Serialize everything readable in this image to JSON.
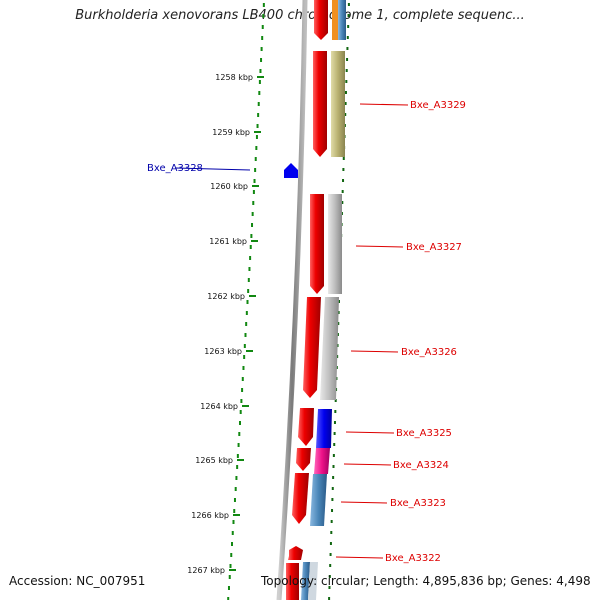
{
  "title": "Burkholderia xenovorans LB400 chromosome 1, complete sequenc...",
  "footer": {
    "accession": "Accession: NC_007951",
    "stats": "Topology: circular; Length: 4,895,836 bp; Genes: 4,498"
  },
  "ticks": [
    "1258 kbp",
    "1259 kbp",
    "1260 kbp",
    "1261 kbp",
    "1262 kbp",
    "1263 kbp",
    "1264 kbp",
    "1265 kbp",
    "1266 kbp",
    "1267 kbp"
  ],
  "gene_labels": [
    {
      "text": "Bxe_A3329",
      "color": "#dd0000"
    },
    {
      "text": "Bxe_A3328",
      "color": "#0000aa"
    },
    {
      "text": "Bxe_A3327",
      "color": "#dd0000"
    },
    {
      "text": "Bxe_A3326",
      "color": "#dd0000"
    },
    {
      "text": "Bxe_A3325",
      "color": "#dd0000"
    },
    {
      "text": "Bxe_A3324",
      "color": "#dd0000"
    },
    {
      "text": "Bxe_A3323",
      "color": "#dd0000"
    },
    {
      "text": "Bxe_A3322",
      "color": "#dd0000"
    }
  ],
  "colors": {
    "cds": "#ee0000",
    "backbone": "#888888",
    "tick_dots": "#118811",
    "olive": "#b8b070",
    "gray_feature": "#bdbdbd",
    "blue_feature": "#0000ee",
    "pink_feature": "#ee1188",
    "steel_feature": "#4a86b8",
    "orange_feature": "#f09020"
  }
}
